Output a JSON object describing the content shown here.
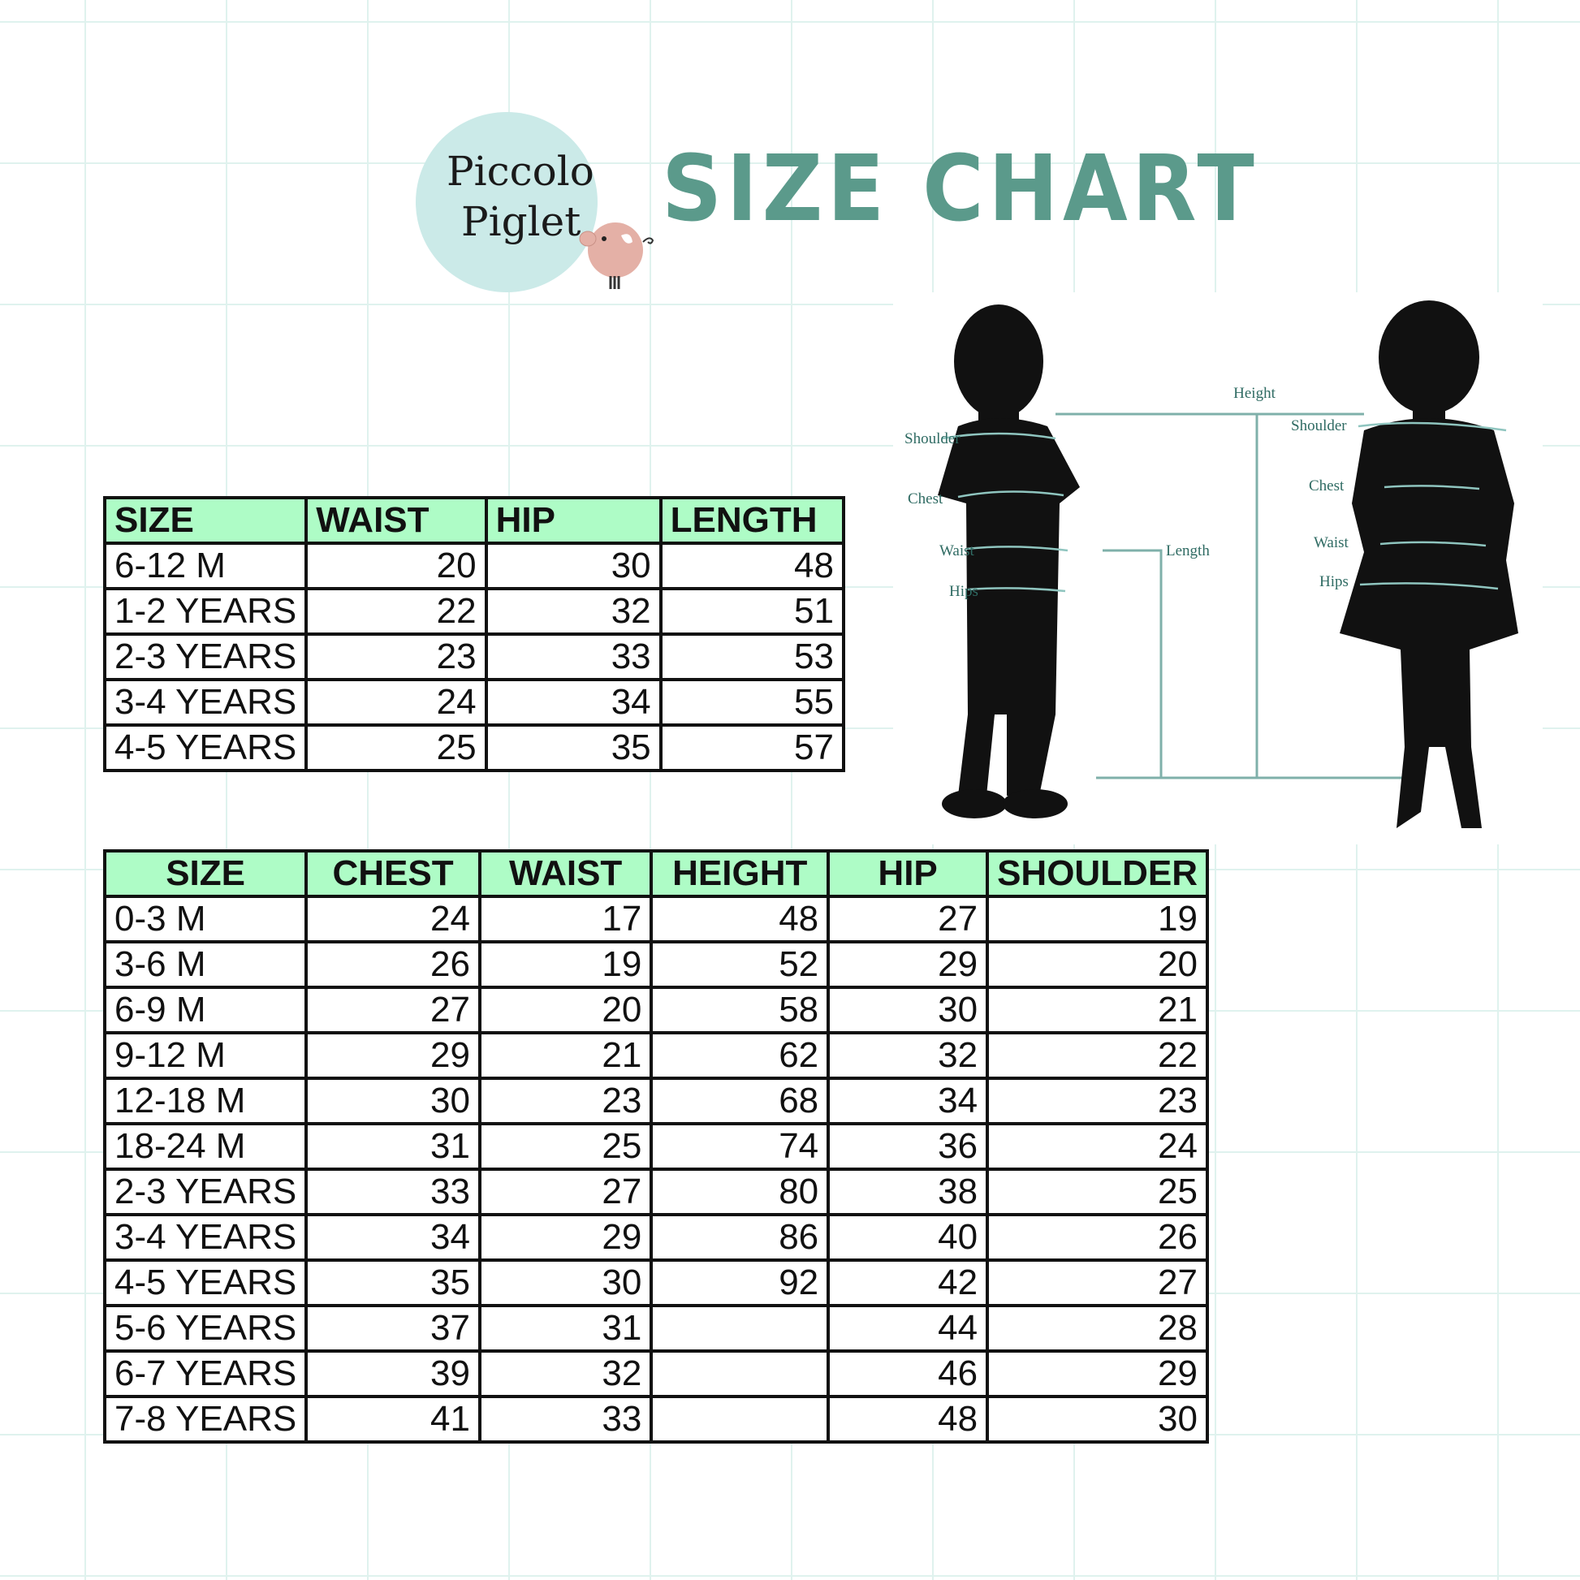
{
  "brand": {
    "logo_text_line1": "Piccolo",
    "logo_text_line2": "Piglet"
  },
  "title": "SIZE CHART",
  "colors": {
    "title": "#5b9a8b",
    "header_bg": "#aefcc6",
    "grid": "#dff2ee",
    "measure_line": "#7fb0aa"
  },
  "diagram": {
    "labels": {
      "height": "Height",
      "length": "Length",
      "boy_shoulder": "Shoulder",
      "boy_chest": "Chest",
      "boy_waist": "Waist",
      "boy_hips": "Hips",
      "girl_shoulder": "Shoulder",
      "girl_chest": "Chest",
      "girl_waist": "Waist",
      "girl_hips": "Hips"
    }
  },
  "table1": {
    "headers": [
      "SIZE",
      "WAIST",
      "HIP",
      "LENGTH"
    ],
    "rows": [
      [
        "6-12 M",
        "20",
        "30",
        "48"
      ],
      [
        "1-2 YEARS",
        "22",
        "32",
        "51"
      ],
      [
        "2-3 YEARS",
        "23",
        "33",
        "53"
      ],
      [
        "3-4 YEARS",
        "24",
        "34",
        "55"
      ],
      [
        "4-5 YEARS",
        "25",
        "35",
        "57"
      ]
    ]
  },
  "table2": {
    "headers": [
      "SIZE",
      "CHEST",
      "WAIST",
      "HEIGHT",
      "HIP",
      "SHOULDER"
    ],
    "rows": [
      [
        "0-3 M",
        "24",
        "17",
        "48",
        "27",
        "19"
      ],
      [
        "3-6 M",
        "26",
        "19",
        "52",
        "29",
        "20"
      ],
      [
        "6-9 M",
        "27",
        "20",
        "58",
        "30",
        "21"
      ],
      [
        "9-12 M",
        "29",
        "21",
        "62",
        "32",
        "22"
      ],
      [
        "12-18 M",
        "30",
        "23",
        "68",
        "34",
        "23"
      ],
      [
        "18-24 M",
        "31",
        "25",
        "74",
        "36",
        "24"
      ],
      [
        "2-3 YEARS",
        "33",
        "27",
        "80",
        "38",
        "25"
      ],
      [
        "3-4 YEARS",
        "34",
        "29",
        "86",
        "40",
        "26"
      ],
      [
        "4-5 YEARS",
        "35",
        "30",
        "92",
        "42",
        "27"
      ],
      [
        "5-6 YEARS",
        "37",
        "31",
        "",
        "44",
        "28"
      ],
      [
        "6-7 YEARS",
        "39",
        "32",
        "",
        "46",
        "29"
      ],
      [
        "7-8 YEARS",
        "41",
        "33",
        "",
        "48",
        "30"
      ]
    ]
  }
}
